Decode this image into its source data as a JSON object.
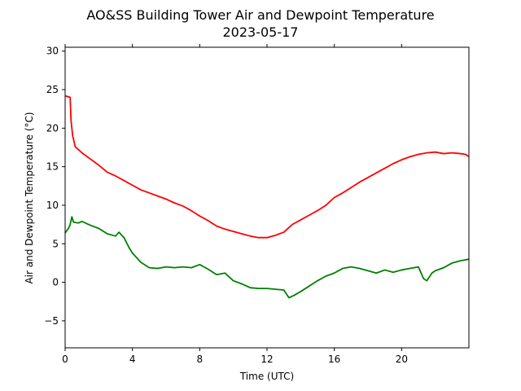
{
  "chart_data": {
    "type": "line",
    "title": "AO&SS Building Tower Air and Dewpoint Temperature",
    "subtitle": "2023-05-17",
    "xlabel": "Time (UTC)",
    "ylabel": "Air and Dewpoint Temperature (°C)",
    "xlim": [
      0,
      24
    ],
    "ylim": [
      -8.5,
      30.5
    ],
    "x_ticks": [
      0,
      4,
      8,
      12,
      16,
      20
    ],
    "y_ticks": [
      -5,
      0,
      5,
      10,
      15,
      20,
      25,
      30
    ],
    "grid": false,
    "series": [
      {
        "color": "#ff0000",
        "x": [
          0,
          0.3,
          0.35,
          0.45,
          0.6,
          1,
          1.5,
          2,
          2.5,
          3,
          3.5,
          4,
          4.5,
          5,
          5.5,
          6,
          6.5,
          7,
          7.5,
          8,
          8.5,
          9,
          9.5,
          10,
          10.5,
          11,
          11.5,
          12,
          12.5,
          13,
          13.5,
          14,
          14.5,
          15,
          15.5,
          16,
          16.5,
          17,
          17.5,
          18,
          18.5,
          19,
          19.5,
          20,
          20.5,
          21,
          21.5,
          22,
          22.5,
          23,
          23.5,
          23.8,
          24
        ],
        "y": [
          24.2,
          24.0,
          21.0,
          19.0,
          17.6,
          16.8,
          16.0,
          15.2,
          14.3,
          13.8,
          13.2,
          12.6,
          12.0,
          11.6,
          11.2,
          10.8,
          10.3,
          9.9,
          9.3,
          8.6,
          8.0,
          7.3,
          6.9,
          6.6,
          6.3,
          6.0,
          5.8,
          5.8,
          6.1,
          6.5,
          7.5,
          8.1,
          8.7,
          9.3,
          10.0,
          11.0,
          11.6,
          12.3,
          13.0,
          13.6,
          14.2,
          14.8,
          15.4,
          15.9,
          16.3,
          16.6,
          16.8,
          16.9,
          16.7,
          16.8,
          16.7,
          16.6,
          16.3
        ]
      },
      {
        "color": "#008000",
        "x": [
          0,
          0.2,
          0.3,
          0.4,
          0.5,
          0.8,
          1,
          1.5,
          2,
          2.5,
          3,
          3.2,
          3.5,
          3.8,
          4,
          4.5,
          5,
          5.5,
          6,
          6.5,
          7,
          7.5,
          8,
          8.5,
          9,
          9.5,
          10,
          10.5,
          11,
          11.5,
          12,
          12.5,
          13,
          13.3,
          13.6,
          14,
          14.5,
          15,
          15.5,
          16,
          16.5,
          17,
          17.5,
          18,
          18.5,
          19,
          19.5,
          20,
          20.5,
          21,
          21.3,
          21.5,
          21.8,
          22,
          22.5,
          23,
          23.5,
          24
        ],
        "y": [
          6.4,
          7.0,
          7.5,
          8.5,
          7.8,
          7.7,
          7.9,
          7.4,
          7.0,
          6.3,
          6.0,
          6.5,
          5.8,
          4.5,
          3.8,
          2.6,
          1.9,
          1.8,
          2.0,
          1.9,
          2.0,
          1.9,
          2.3,
          1.7,
          1.0,
          1.2,
          0.2,
          -0.2,
          -0.7,
          -0.8,
          -0.8,
          -0.9,
          -1.0,
          -2.0,
          -1.7,
          -1.2,
          -0.5,
          0.2,
          0.8,
          1.2,
          1.8,
          2.0,
          1.8,
          1.5,
          1.2,
          1.6,
          1.3,
          1.6,
          1.8,
          2.0,
          0.5,
          0.2,
          1.2,
          1.5,
          1.9,
          2.5,
          2.8,
          3.0
        ]
      }
    ]
  }
}
